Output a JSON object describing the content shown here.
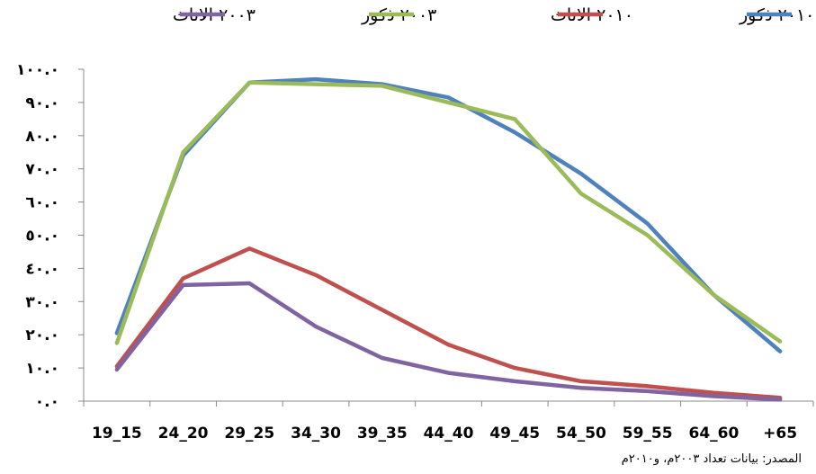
{
  "chart_data": {
    "type": "line",
    "categories": [
      "19_15",
      "24_20",
      "29_25",
      "34_30",
      "39_35",
      "44_40",
      "49_45",
      "54_50",
      "59_55",
      "64_60",
      "+65"
    ],
    "y_ticks": [
      "٠.٠",
      "١٠.٠",
      "٢٠.٠",
      "٣٠.٠",
      "٤٠.٠",
      "٥٠.٠",
      "٦٠.٠",
      "٧٠.٠",
      "٨٠.٠",
      "٩٠.٠",
      "١٠٠.٠"
    ],
    "ylim": [
      0,
      100
    ],
    "grid": false,
    "legend_position": "top",
    "series": [
      {
        "name": "٢٠١٠ ذكور",
        "color": "#4F81BD",
        "values": [
          20.5,
          74,
          96,
          97,
          95.5,
          91.5,
          81,
          68.5,
          53.5,
          32,
          15
        ]
      },
      {
        "name": "٢٠١٠ الاناث",
        "color": "#C0504D",
        "values": [
          10.5,
          37,
          46,
          38,
          27.5,
          17,
          10,
          6,
          4.5,
          2.5,
          1
        ]
      },
      {
        "name": "٢٠٠٣ ذكور",
        "color": "#9BBB59",
        "values": [
          17.5,
          75,
          96,
          95.5,
          95,
          90,
          85,
          62.5,
          50,
          32,
          18
        ]
      },
      {
        "name": "٢٠٠٣ الاناث",
        "color": "#8064A2",
        "values": [
          9.5,
          35,
          35.5,
          22.5,
          13,
          8.5,
          6,
          4,
          3,
          1.5,
          0.5
        ]
      }
    ]
  },
  "source_note": "المصدر: بيانات تعداد ٢٠٠٣م، و٢٠١٠م"
}
